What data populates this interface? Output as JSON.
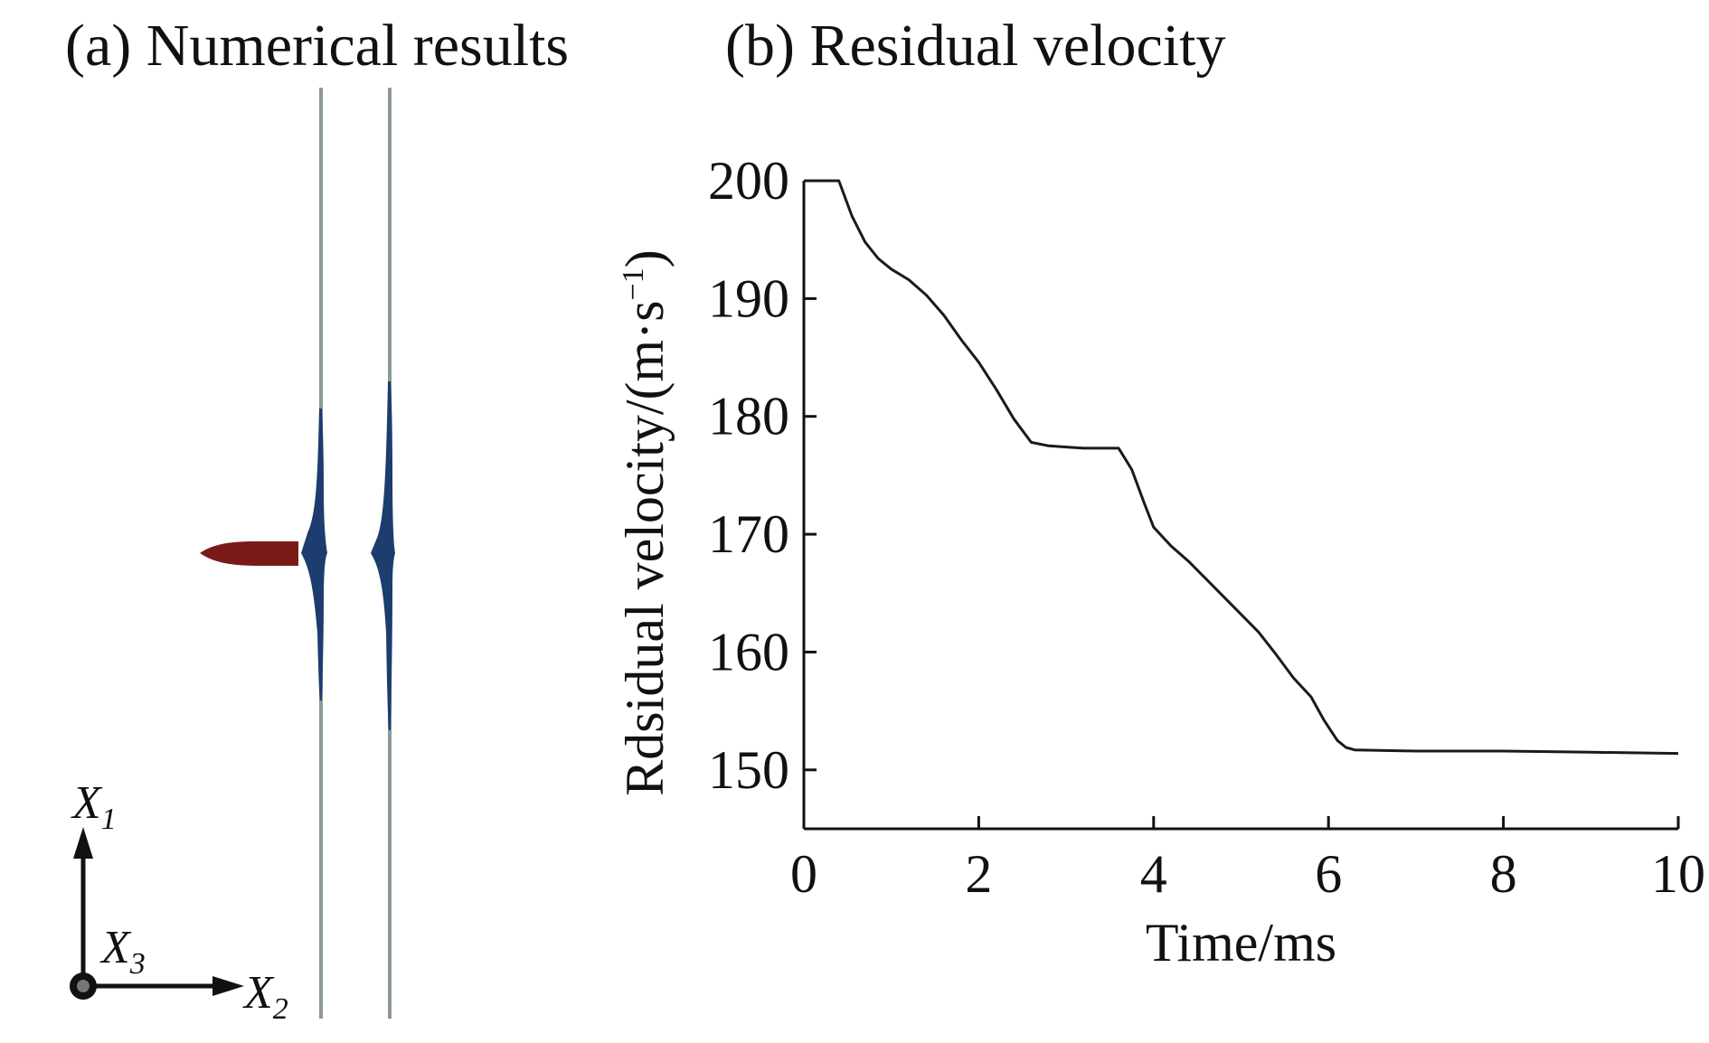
{
  "panel_a": {
    "title": "(a) Numerical results",
    "axes": {
      "x1_symbol": "X",
      "x1_sub": "1",
      "x2_symbol": "X",
      "x2_sub": "2",
      "x3_symbol": "X",
      "x3_sub": "3"
    },
    "colors": {
      "projectile": "#7a1a18",
      "plate": "#8a9a96",
      "debris": "#1c3d6e",
      "triad": "#111111"
    }
  },
  "panel_b": {
    "title": "(b) Residual velocity"
  },
  "chart_data": {
    "type": "line",
    "title": "(b) Residual velocity",
    "xlabel": "Time/ms",
    "ylabel": "Rdsidual velocity/(m·s",
    "ylabel_exp": "−1",
    "ylabel_close": ")",
    "xlim": [
      0,
      10
    ],
    "ylim": [
      145,
      200
    ],
    "xticks": [
      0,
      2,
      4,
      6,
      8,
      10
    ],
    "yticks": [
      150,
      160,
      170,
      180,
      190,
      200
    ],
    "grid": false,
    "line_color": "#1a1a1a",
    "series": [
      {
        "x": [
          0,
          0.2,
          0.4,
          0.55,
          0.7,
          0.85,
          1.0,
          1.2,
          1.4,
          1.6,
          1.8,
          2.0,
          2.2,
          2.4,
          2.6,
          2.8,
          3.0,
          3.2,
          3.4,
          3.6,
          3.75,
          3.9,
          4.0,
          4.2,
          4.4,
          4.6,
          4.8,
          5.0,
          5.2,
          5.4,
          5.6,
          5.8,
          5.95,
          6.1,
          6.2,
          6.3,
          7.0,
          8.0,
          9.0,
          10.0
        ],
        "y": [
          200,
          200,
          200,
          197,
          194.8,
          193.4,
          192.5,
          191.6,
          190.3,
          188.6,
          186.5,
          184.6,
          182.3,
          179.8,
          177.8,
          177.5,
          177.4,
          177.3,
          177.3,
          177.3,
          175.5,
          172.5,
          170.6,
          169.0,
          167.7,
          166.2,
          164.7,
          163.2,
          161.7,
          159.8,
          157.8,
          156.2,
          154.2,
          152.5,
          151.9,
          151.7,
          151.6,
          151.6,
          151.5,
          151.4
        ]
      }
    ]
  }
}
